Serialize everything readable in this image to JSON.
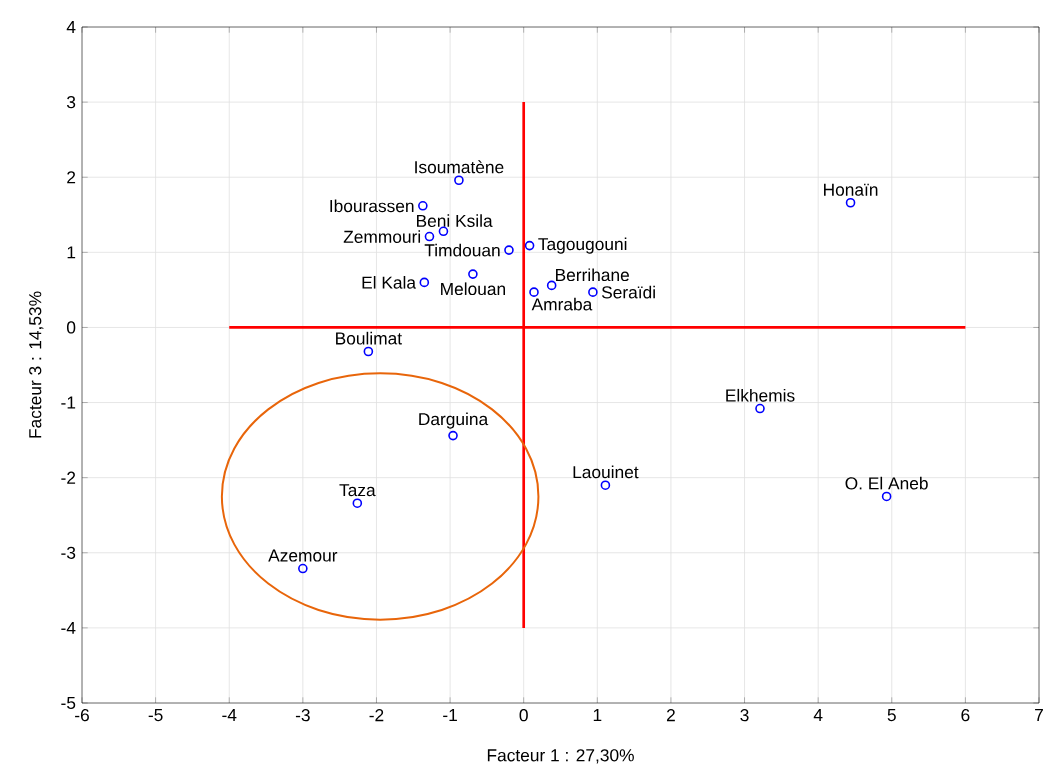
{
  "chart_data": {
    "type": "scatter",
    "xlabel": "Facteur 1 : 27,30%",
    "ylabel": "Facteur 3 : 14,53%",
    "xlim": [
      -6,
      7
    ],
    "ylim": [
      -5,
      4
    ],
    "xticks": [
      -6,
      -5,
      -4,
      -3,
      -2,
      -1,
      0,
      1,
      2,
      3,
      4,
      5,
      6,
      7
    ],
    "yticks": [
      -5,
      -4,
      -3,
      -2,
      -1,
      0,
      1,
      2,
      3,
      4
    ],
    "grid": true,
    "marker": "circle",
    "series": [
      {
        "color": "#0000ff",
        "x": [
          -0.88,
          -1.37,
          -1.09,
          -1.28,
          -0.2,
          0.08,
          -0.69,
          -1.35,
          0.14,
          0.38,
          0.94,
          -2.11,
          -0.96,
          -2.26,
          -3.0,
          1.11,
          3.21,
          4.93,
          4.44
        ],
        "values": [
          1.96,
          1.62,
          1.28,
          1.21,
          1.03,
          1.09,
          0.71,
          0.6,
          0.47,
          0.56,
          0.47,
          -0.32,
          -1.44,
          -2.34,
          -3.21,
          -2.1,
          -1.08,
          -2.25,
          1.66
        ]
      },
      {
        "type": "line",
        "color": "#ff0000",
        "marker": "none",
        "x": [
          -4,
          6
        ],
        "values": [
          0,
          0
        ]
      },
      {
        "type": "line",
        "color": "#ff0000",
        "marker": "none",
        "x": [
          0,
          0
        ],
        "values": [
          -4,
          3
        ]
      }
    ],
    "annotations": [
      {
        "text": "Isoumatène",
        "x": -0.88,
        "y": 1.96
      },
      {
        "text": "Ibourassen",
        "x": -1.37,
        "y": 1.62
      },
      {
        "text": "Beni Ksila",
        "x": -1.09,
        "y": 1.28
      },
      {
        "text": "Zemmouri",
        "x": -1.28,
        "y": 1.21
      },
      {
        "text": "Timdouan",
        "x": -0.2,
        "y": 1.03
      },
      {
        "text": "Tagougouni",
        "x": 0.08,
        "y": 1.09
      },
      {
        "text": "Melouan",
        "x": -0.69,
        "y": 0.71
      },
      {
        "text": "El Kala",
        "x": -1.35,
        "y": 0.6
      },
      {
        "text": "Amraba",
        "x": 0.14,
        "y": 0.47
      },
      {
        "text": "Berrihane",
        "x": 0.38,
        "y": 0.56
      },
      {
        "text": "Seraïdi",
        "x": 0.94,
        "y": 0.47
      },
      {
        "text": "Boulimat",
        "x": -2.11,
        "y": -0.32
      },
      {
        "text": "Darguina",
        "x": -0.96,
        "y": -1.44
      },
      {
        "text": "Taza",
        "x": -2.26,
        "y": -2.34
      },
      {
        "text": "Azemour",
        "x": -3.0,
        "y": -3.21
      },
      {
        "text": "Laouinet",
        "x": 1.11,
        "y": -2.1
      },
      {
        "text": "Elkhemis",
        "x": 3.21,
        "y": -1.08
      },
      {
        "text": "O. El Aneb",
        "x": 4.93,
        "y": -2.25
      },
      {
        "text": "Honaïn",
        "x": 4.44,
        "y": 1.66
      }
    ]
  }
}
